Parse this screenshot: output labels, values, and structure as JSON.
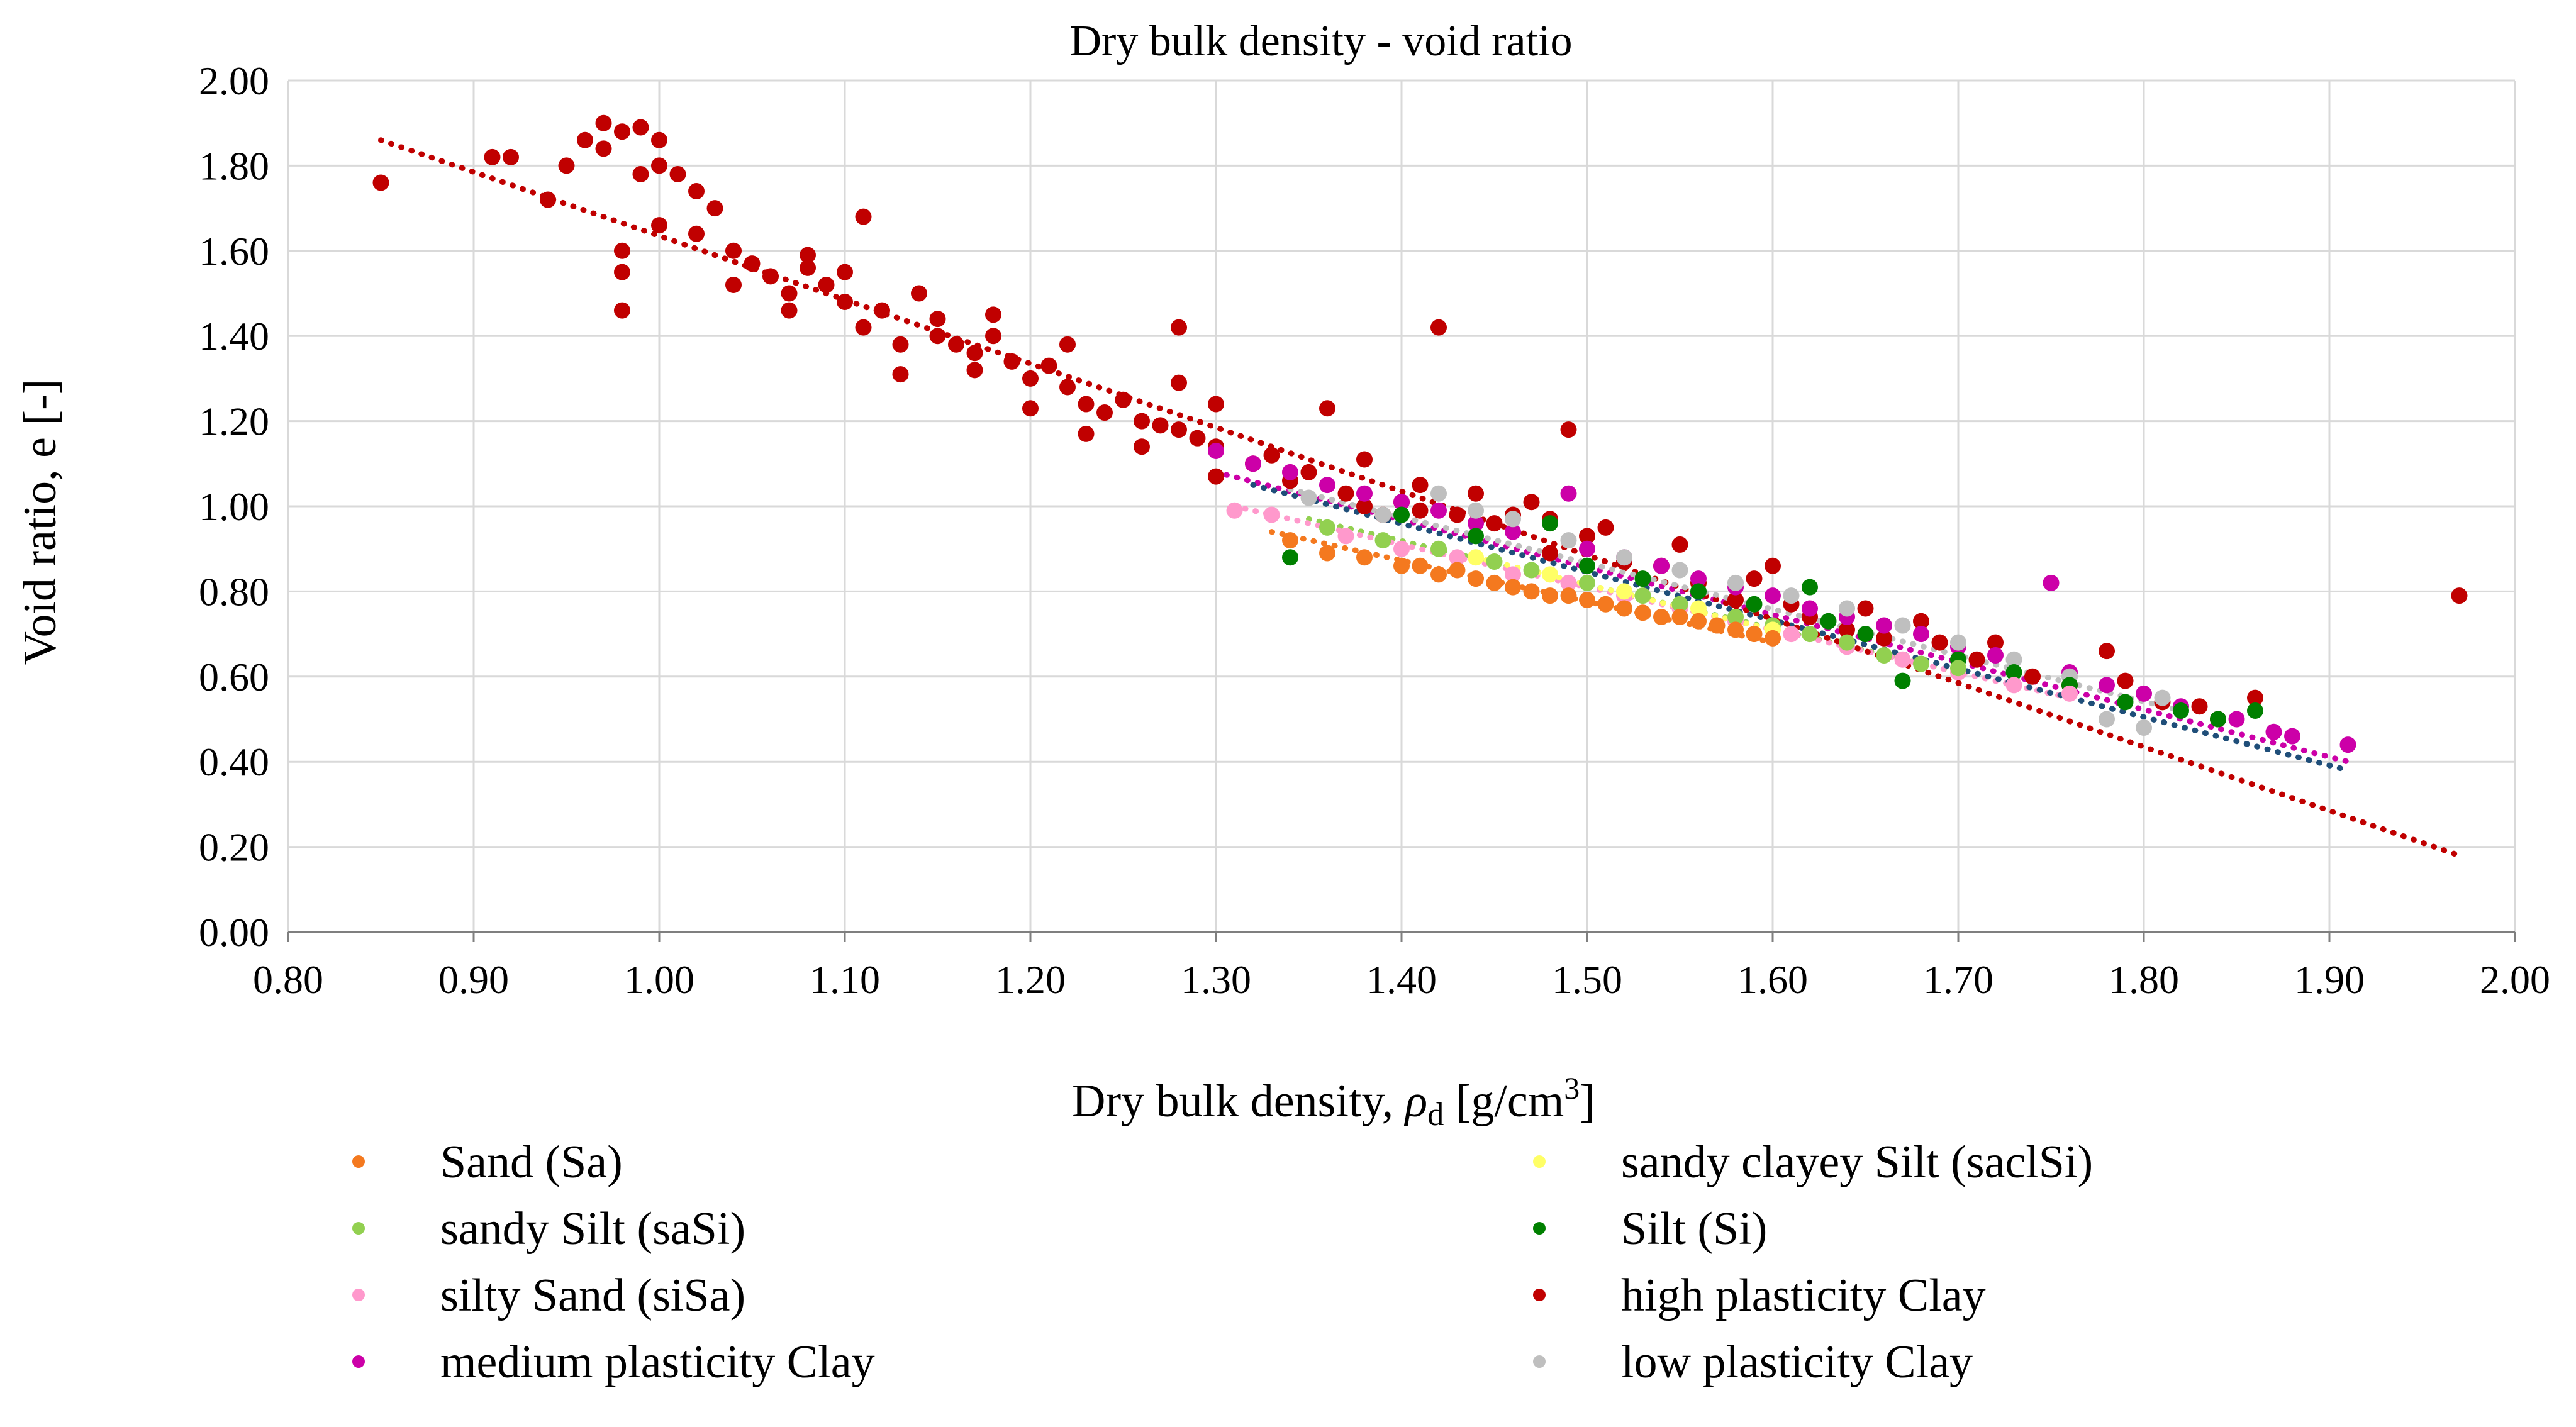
{
  "chart_data": {
    "type": "scatter",
    "title": "Dry bulk density - void ratio",
    "xlabel_text": "Dry bulk density, ",
    "xlabel_symbol": "ρ",
    "xlabel_symbol_sub": "d",
    "xlabel_unit": " [g/cm",
    "xlabel_unit_sup": "3",
    "xlabel_unit_end": "]",
    "ylabel": "Void ratio, e [-]",
    "xlim": [
      0.8,
      2.0
    ],
    "ylim": [
      0.0,
      2.0
    ],
    "x_ticks": [
      "0.80",
      "0.90",
      "1.00",
      "1.10",
      "1.20",
      "1.30",
      "1.40",
      "1.50",
      "1.60",
      "1.70",
      "1.80",
      "1.90",
      "2.00"
    ],
    "y_ticks": [
      "0.00",
      "0.20",
      "0.40",
      "0.60",
      "0.80",
      "1.00",
      "1.20",
      "1.40",
      "1.60",
      "1.80",
      "2.00"
    ],
    "grid": true,
    "legend_position": "bottom",
    "series": [
      {
        "name": "Sand (Sa)",
        "color": "#f4791f",
        "points": [
          [
            1.34,
            0.92
          ],
          [
            1.36,
            0.89
          ],
          [
            1.38,
            0.88
          ],
          [
            1.4,
            0.86
          ],
          [
            1.41,
            0.86
          ],
          [
            1.42,
            0.84
          ],
          [
            1.43,
            0.85
          ],
          [
            1.44,
            0.83
          ],
          [
            1.45,
            0.82
          ],
          [
            1.46,
            0.81
          ],
          [
            1.47,
            0.8
          ],
          [
            1.48,
            0.79
          ],
          [
            1.49,
            0.79
          ],
          [
            1.5,
            0.78
          ],
          [
            1.51,
            0.77
          ],
          [
            1.52,
            0.76
          ],
          [
            1.53,
            0.75
          ],
          [
            1.54,
            0.74
          ],
          [
            1.55,
            0.74
          ],
          [
            1.56,
            0.73
          ],
          [
            1.57,
            0.72
          ],
          [
            1.58,
            0.71
          ],
          [
            1.59,
            0.7
          ],
          [
            1.6,
            0.69
          ]
        ],
        "trend": [
          [
            1.33,
            0.94
          ],
          [
            1.6,
            0.68
          ]
        ]
      },
      {
        "name": "sandy Silt (saSi)",
        "color": "#92d050",
        "points": [
          [
            1.36,
            0.95
          ],
          [
            1.39,
            0.92
          ],
          [
            1.42,
            0.9
          ],
          [
            1.45,
            0.87
          ],
          [
            1.47,
            0.85
          ],
          [
            1.5,
            0.82
          ],
          [
            1.53,
            0.79
          ],
          [
            1.55,
            0.77
          ],
          [
            1.58,
            0.74
          ],
          [
            1.6,
            0.72
          ],
          [
            1.62,
            0.7
          ],
          [
            1.64,
            0.68
          ],
          [
            1.66,
            0.65
          ],
          [
            1.68,
            0.63
          ],
          [
            1.7,
            0.62
          ]
        ],
        "trend": [
          [
            1.35,
            0.97
          ],
          [
            1.7,
            0.61
          ]
        ]
      },
      {
        "name": "silty Sand (siSa)",
        "color": "#ff99cc",
        "points": [
          [
            1.31,
            0.99
          ],
          [
            1.33,
            0.98
          ],
          [
            1.37,
            0.93
          ],
          [
            1.4,
            0.9
          ],
          [
            1.43,
            0.88
          ],
          [
            1.46,
            0.84
          ],
          [
            1.49,
            0.82
          ],
          [
            1.52,
            0.79
          ],
          [
            1.55,
            0.76
          ],
          [
            1.58,
            0.73
          ],
          [
            1.61,
            0.7
          ],
          [
            1.64,
            0.67
          ],
          [
            1.67,
            0.64
          ],
          [
            1.7,
            0.61
          ],
          [
            1.73,
            0.58
          ],
          [
            1.76,
            0.56
          ]
        ],
        "trend": [
          [
            1.31,
            1.0
          ],
          [
            1.76,
            0.55
          ]
        ]
      },
      {
        "name": "medium plasticity Clay",
        "color": "#cc00a8",
        "points": [
          [
            1.3,
            1.13
          ],
          [
            1.32,
            1.1
          ],
          [
            1.34,
            1.08
          ],
          [
            1.36,
            1.05
          ],
          [
            1.38,
            1.03
          ],
          [
            1.4,
            1.01
          ],
          [
            1.42,
            0.99
          ],
          [
            1.44,
            0.96
          ],
          [
            1.46,
            0.94
          ],
          [
            1.49,
            1.03
          ],
          [
            1.5,
            0.9
          ],
          [
            1.52,
            0.88
          ],
          [
            1.54,
            0.86
          ],
          [
            1.56,
            0.83
          ],
          [
            1.58,
            0.81
          ],
          [
            1.6,
            0.79
          ],
          [
            1.62,
            0.76
          ],
          [
            1.64,
            0.74
          ],
          [
            1.66,
            0.72
          ],
          [
            1.68,
            0.7
          ],
          [
            1.7,
            0.67
          ],
          [
            1.72,
            0.65
          ],
          [
            1.75,
            0.82
          ],
          [
            1.76,
            0.61
          ],
          [
            1.78,
            0.58
          ],
          [
            1.8,
            0.56
          ],
          [
            1.82,
            0.53
          ],
          [
            1.85,
            0.5
          ],
          [
            1.87,
            0.47
          ],
          [
            1.88,
            0.46
          ],
          [
            1.91,
            0.44
          ]
        ],
        "trend": [
          [
            1.3,
            1.08
          ],
          [
            1.91,
            0.4
          ]
        ]
      },
      {
        "name": "sandy clayey Silt (saclSi)",
        "color": "#ffff66",
        "points": [
          [
            1.44,
            0.88
          ],
          [
            1.48,
            0.84
          ],
          [
            1.52,
            0.8
          ],
          [
            1.56,
            0.76
          ],
          [
            1.6,
            0.71
          ]
        ],
        "trend": [
          [
            1.44,
            0.88
          ],
          [
            1.6,
            0.71
          ]
        ]
      },
      {
        "name": "Silt (Si)",
        "color": "#008000",
        "points": [
          [
            1.34,
            0.88
          ],
          [
            1.4,
            0.98
          ],
          [
            1.44,
            0.93
          ],
          [
            1.48,
            0.96
          ],
          [
            1.5,
            0.86
          ],
          [
            1.53,
            0.83
          ],
          [
            1.56,
            0.8
          ],
          [
            1.59,
            0.77
          ],
          [
            1.62,
            0.81
          ],
          [
            1.63,
            0.73
          ],
          [
            1.65,
            0.7
          ],
          [
            1.67,
            0.59
          ],
          [
            1.7,
            0.64
          ],
          [
            1.73,
            0.61
          ],
          [
            1.76,
            0.58
          ],
          [
            1.79,
            0.54
          ],
          [
            1.82,
            0.52
          ],
          [
            1.84,
            0.5
          ],
          [
            1.86,
            0.52
          ]
        ],
        "trend": [
          [
            1.32,
            1.05
          ],
          [
            1.91,
            0.38
          ]
        ]
      },
      {
        "name": "high plasticity Clay",
        "color": "#c00000",
        "points": [
          [
            0.85,
            1.76
          ],
          [
            0.91,
            1.82
          ],
          [
            0.92,
            1.82
          ],
          [
            0.94,
            1.72
          ],
          [
            0.95,
            1.8
          ],
          [
            0.96,
            1.86
          ],
          [
            0.97,
            1.9
          ],
          [
            0.97,
            1.84
          ],
          [
            0.98,
            1.88
          ],
          [
            0.99,
            1.89
          ],
          [
            1.0,
            1.86
          ],
          [
            1.0,
            1.8
          ],
          [
            0.99,
            1.78
          ],
          [
            1.01,
            1.78
          ],
          [
            1.02,
            1.74
          ],
          [
            1.0,
            1.66
          ],
          [
            0.98,
            1.6
          ],
          [
            0.98,
            1.55
          ],
          [
            0.98,
            1.46
          ],
          [
            1.02,
            1.64
          ],
          [
            1.03,
            1.7
          ],
          [
            1.04,
            1.6
          ],
          [
            1.04,
            1.52
          ],
          [
            1.05,
            1.57
          ],
          [
            1.06,
            1.54
          ],
          [
            1.07,
            1.5
          ],
          [
            1.07,
            1.46
          ],
          [
            1.08,
            1.56
          ],
          [
            1.08,
            1.59
          ],
          [
            1.09,
            1.52
          ],
          [
            1.1,
            1.48
          ],
          [
            1.1,
            1.55
          ],
          [
            1.11,
            1.68
          ],
          [
            1.11,
            1.42
          ],
          [
            1.12,
            1.46
          ],
          [
            1.13,
            1.38
          ],
          [
            1.13,
            1.31
          ],
          [
            1.14,
            1.5
          ],
          [
            1.15,
            1.44
          ],
          [
            1.15,
            1.4
          ],
          [
            1.16,
            1.38
          ],
          [
            1.17,
            1.36
          ],
          [
            1.17,
            1.32
          ],
          [
            1.18,
            1.45
          ],
          [
            1.18,
            1.4
          ],
          [
            1.19,
            1.34
          ],
          [
            1.2,
            1.3
          ],
          [
            1.2,
            1.23
          ],
          [
            1.21,
            1.33
          ],
          [
            1.22,
            1.38
          ],
          [
            1.22,
            1.28
          ],
          [
            1.23,
            1.24
          ],
          [
            1.23,
            1.17
          ],
          [
            1.24,
            1.22
          ],
          [
            1.25,
            1.25
          ],
          [
            1.26,
            1.2
          ],
          [
            1.26,
            1.14
          ],
          [
            1.27,
            1.19
          ],
          [
            1.28,
            1.18
          ],
          [
            1.28,
            1.42
          ],
          [
            1.28,
            1.29
          ],
          [
            1.29,
            1.16
          ],
          [
            1.3,
            1.24
          ],
          [
            1.3,
            1.14
          ],
          [
            1.3,
            1.07
          ],
          [
            1.32,
            1.1
          ],
          [
            1.33,
            1.12
          ],
          [
            1.34,
            1.06
          ],
          [
            1.35,
            1.08
          ],
          [
            1.36,
            1.23
          ],
          [
            1.37,
            1.03
          ],
          [
            1.38,
            1.0
          ],
          [
            1.38,
            1.11
          ],
          [
            1.39,
            0.98
          ],
          [
            1.4,
            1.01
          ],
          [
            1.41,
            1.05
          ],
          [
            1.41,
            0.99
          ],
          [
            1.42,
            1.42
          ],
          [
            1.43,
            0.98
          ],
          [
            1.44,
            1.03
          ],
          [
            1.45,
            0.96
          ],
          [
            1.46,
            0.98
          ],
          [
            1.47,
            1.01
          ],
          [
            1.48,
            0.97
          ],
          [
            1.48,
            0.89
          ],
          [
            1.49,
            1.18
          ],
          [
            1.5,
            0.93
          ],
          [
            1.51,
            0.95
          ],
          [
            1.52,
            0.87
          ],
          [
            1.54,
            0.86
          ],
          [
            1.55,
            0.91
          ],
          [
            1.56,
            0.82
          ],
          [
            1.58,
            0.78
          ],
          [
            1.59,
            0.83
          ],
          [
            1.6,
            0.86
          ],
          [
            1.61,
            0.77
          ],
          [
            1.62,
            0.74
          ],
          [
            1.64,
            0.71
          ],
          [
            1.65,
            0.76
          ],
          [
            1.66,
            0.69
          ],
          [
            1.68,
            0.73
          ],
          [
            1.69,
            0.68
          ],
          [
            1.71,
            0.64
          ],
          [
            1.72,
            0.68
          ],
          [
            1.74,
            0.6
          ],
          [
            1.76,
            0.58
          ],
          [
            1.78,
            0.66
          ],
          [
            1.79,
            0.59
          ],
          [
            1.81,
            0.54
          ],
          [
            1.83,
            0.53
          ],
          [
            1.84,
            0.5
          ],
          [
            1.86,
            0.55
          ],
          [
            1.97,
            0.79
          ]
        ],
        "trend": [
          [
            0.85,
            1.86
          ],
          [
            1.97,
            0.18
          ]
        ]
      },
      {
        "name": "low plasticity Clay",
        "color": "#bfbfbf",
        "points": [
          [
            1.35,
            1.02
          ],
          [
            1.39,
            0.98
          ],
          [
            1.42,
            1.03
          ],
          [
            1.44,
            0.99
          ],
          [
            1.46,
            0.97
          ],
          [
            1.49,
            0.92
          ],
          [
            1.52,
            0.88
          ],
          [
            1.55,
            0.85
          ],
          [
            1.58,
            0.82
          ],
          [
            1.61,
            0.79
          ],
          [
            1.64,
            0.76
          ],
          [
            1.67,
            0.72
          ],
          [
            1.7,
            0.68
          ],
          [
            1.73,
            0.64
          ],
          [
            1.76,
            0.6
          ],
          [
            1.78,
            0.5
          ],
          [
            1.8,
            0.48
          ],
          [
            1.81,
            0.55
          ]
        ],
        "trend": [
          [
            1.34,
            1.04
          ],
          [
            1.82,
            0.52
          ]
        ]
      }
    ]
  }
}
